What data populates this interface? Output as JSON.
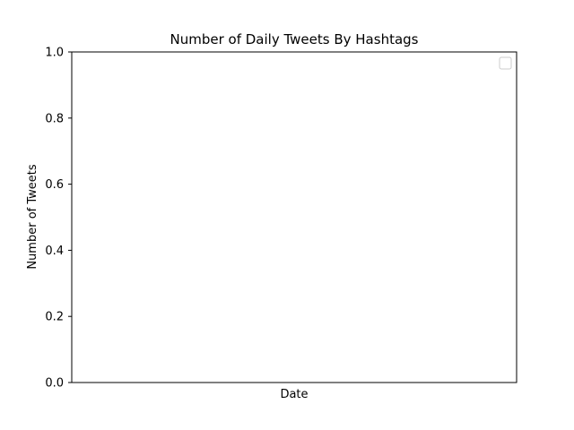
{
  "chart_data": {
    "type": "line",
    "title": "Number of Daily Tweets By Hashtags",
    "xlabel": "Date",
    "ylabel": "Number of Tweets",
    "ylim": [
      0,
      1
    ],
    "yticks": [
      "0.0",
      "0.2",
      "0.4",
      "0.6",
      "0.8",
      "1.0"
    ],
    "xticks": [],
    "series": [],
    "grid": false,
    "legend": {
      "placement": "top-right",
      "entries": []
    }
  }
}
